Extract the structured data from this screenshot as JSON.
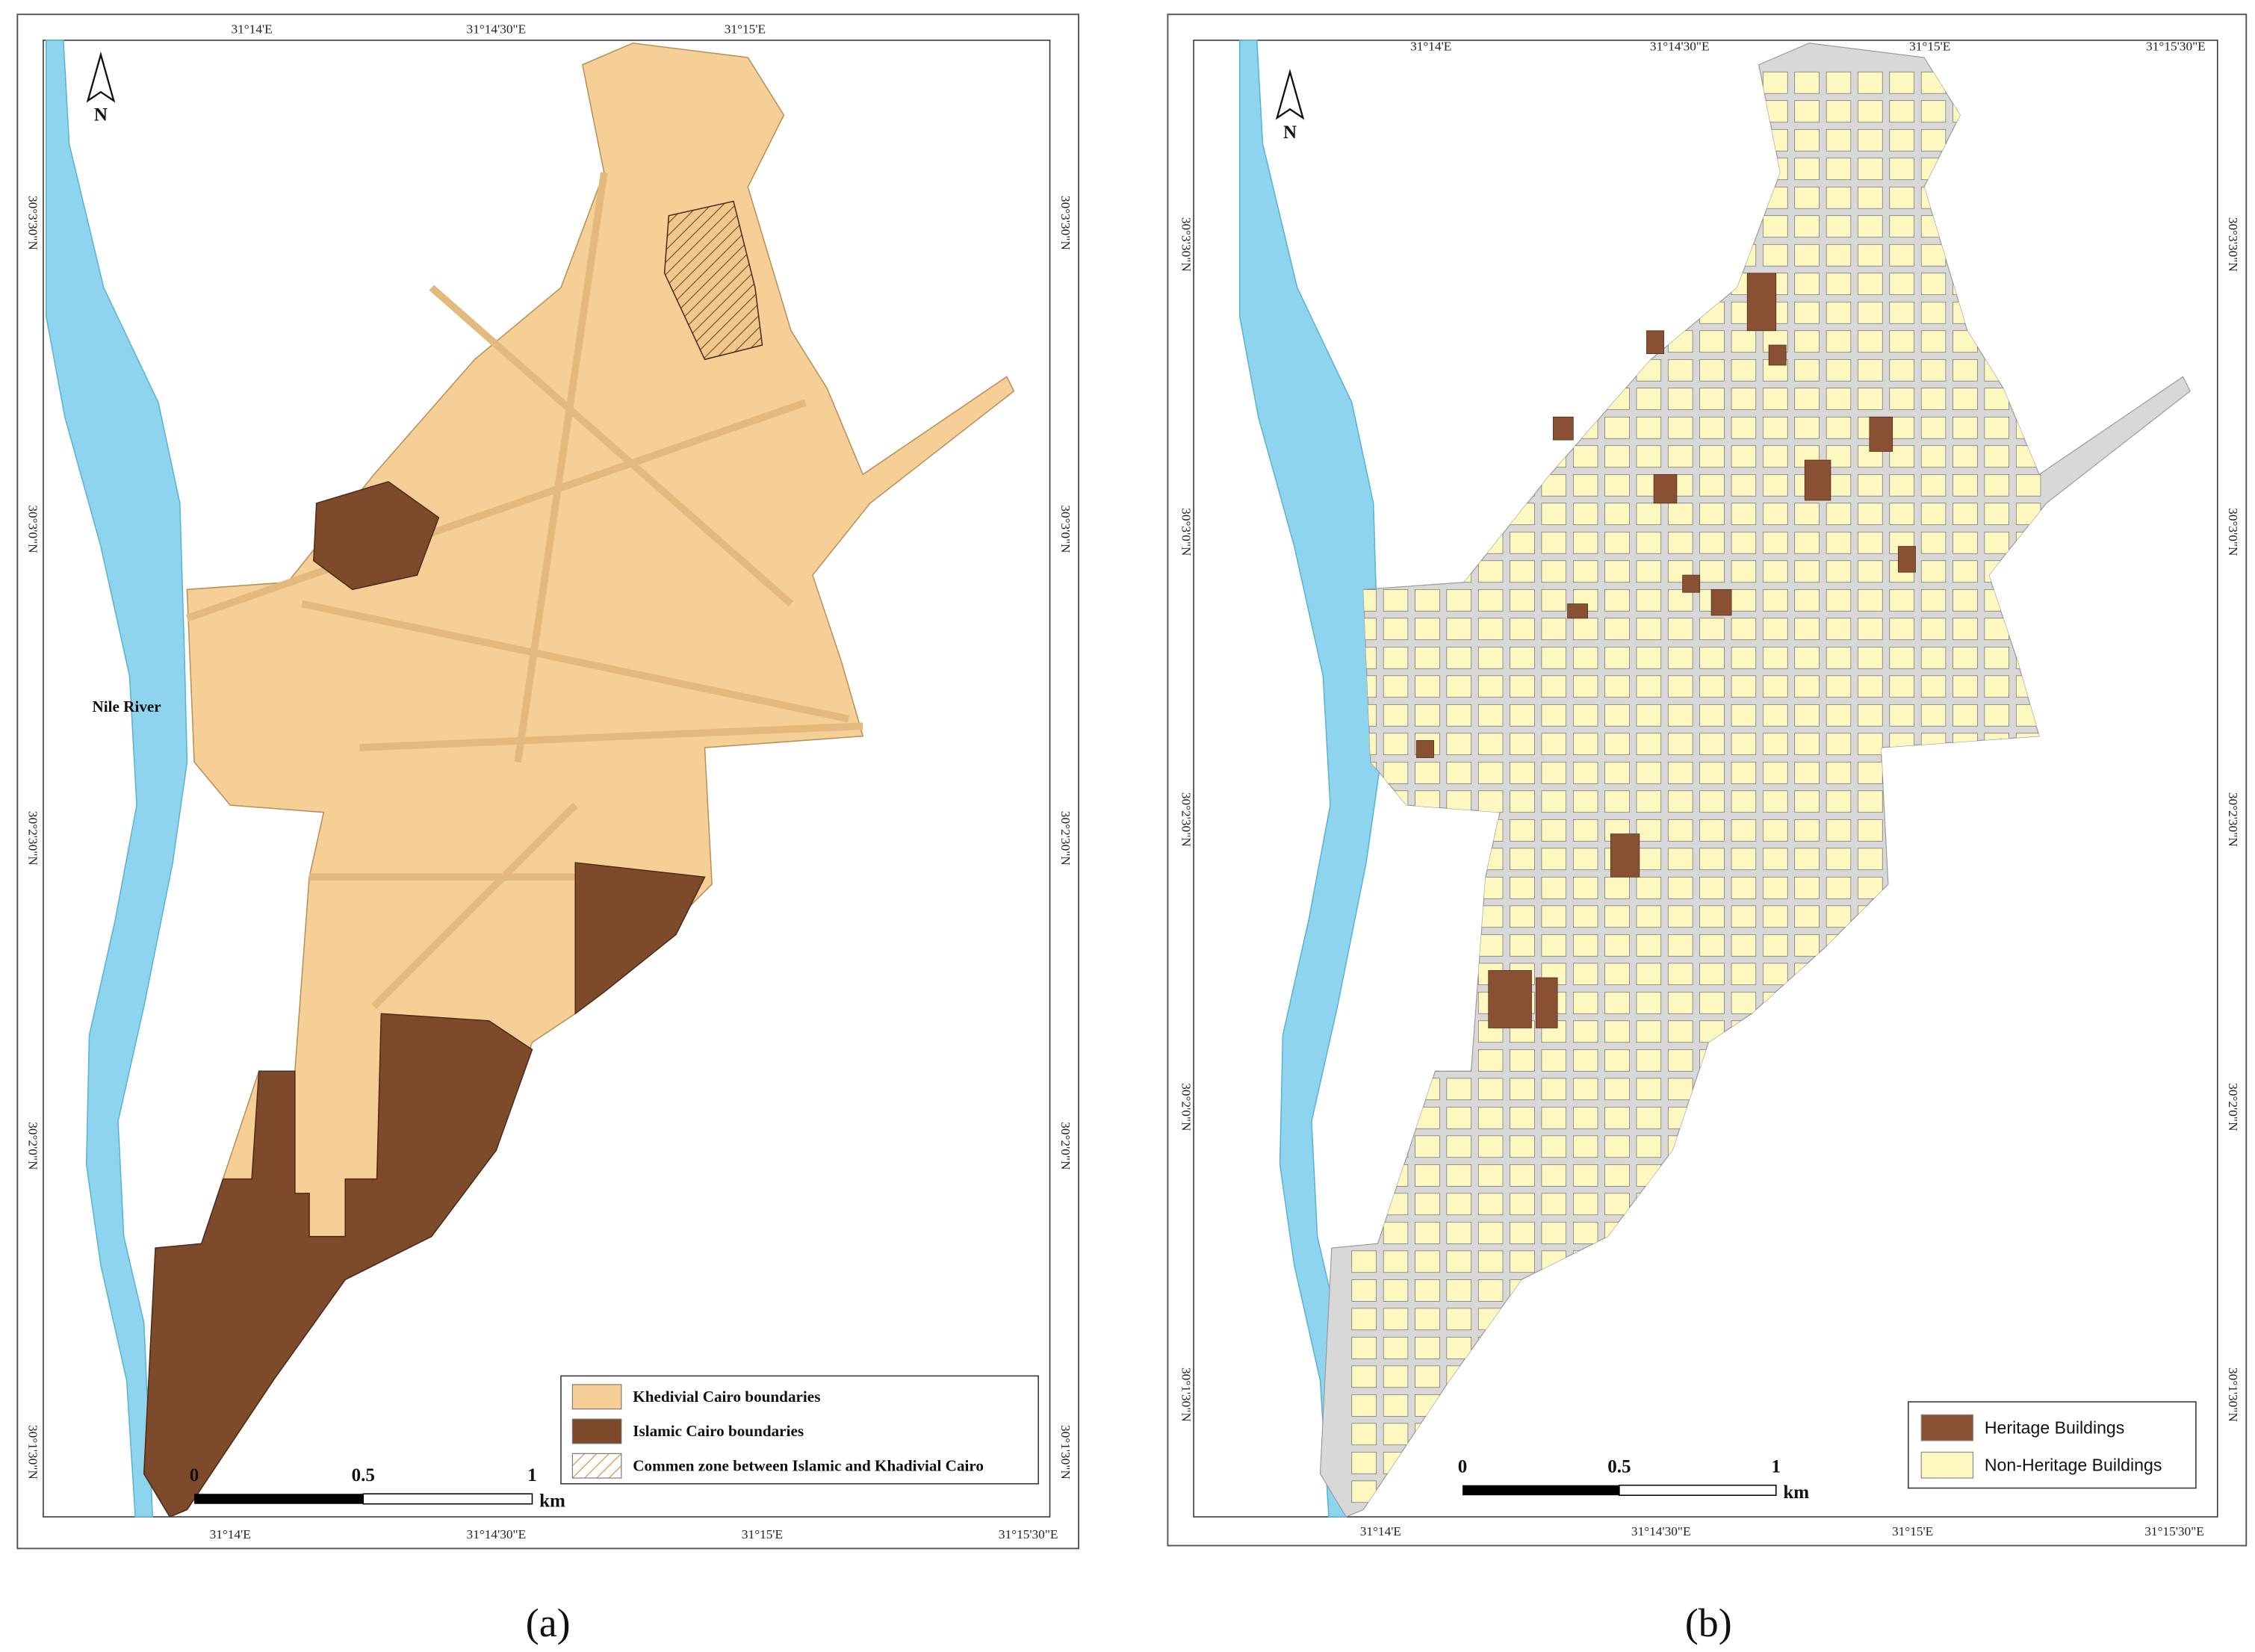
{
  "panels": [
    {
      "caption": "(a)",
      "north": "N",
      "river_label": "Nile River",
      "top_labels": [
        "31°14'E",
        "31°14'30\"E",
        "31°15'E"
      ],
      "bottom_labels": [
        "31°14'E",
        "31°14'30\"E",
        "31°15'E",
        "31°15'30\"E"
      ],
      "left_labels": [
        "30°3'30\"N",
        "30°3'0\"N",
        "30°2'30\"N",
        "30°2'0\"N",
        "30°1'30\"N"
      ],
      "right_labels": [
        "30°3'30\"N",
        "30°3'0\"N",
        "30°2'30\"N",
        "30°2'0\"N",
        "30°1'30\"N"
      ],
      "legend": [
        "Khedivial Cairo boundaries",
        "Islamic Cairo boundaries",
        "Commen zone between Islamic and Khadivial Cairo"
      ],
      "scale": {
        "labels": [
          "0",
          "0.5",
          "1"
        ],
        "unit": "km"
      }
    },
    {
      "caption": "(b)",
      "north": "N",
      "top_labels": [
        "31°14'E",
        "31°14'30\"E",
        "31°15'E",
        "31°15'30\"E"
      ],
      "bottom_labels": [
        "31°14'E",
        "31°14'30\"E",
        "31°15'E",
        "31°15'30\"E"
      ],
      "left_labels": [
        "30°3'30\"N",
        "30°3'0\"N",
        "30°2'30\"N",
        "30°2'0\"N",
        "30°1'30\"N"
      ],
      "right_labels": [
        "30°3'30\"N",
        "30°3'0\"N",
        "30°2'30\"N",
        "30°2'0\"N",
        "30°1'30\"N"
      ],
      "legend": [
        "Heritage Buildings",
        "Non-Heritage Buildings"
      ],
      "scale": {
        "labels": [
          "0",
          "0.5",
          "1"
        ],
        "unit": "km"
      }
    }
  ]
}
